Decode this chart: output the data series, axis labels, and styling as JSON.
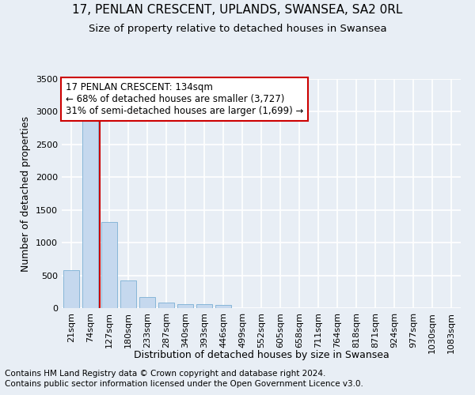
{
  "title": "17, PENLAN CRESCENT, UPLANDS, SWANSEA, SA2 0RL",
  "subtitle": "Size of property relative to detached houses in Swansea",
  "xlabel": "Distribution of detached houses by size in Swansea",
  "ylabel": "Number of detached properties",
  "footer_line1": "Contains HM Land Registry data © Crown copyright and database right 2024.",
  "footer_line2": "Contains public sector information licensed under the Open Government Licence v3.0.",
  "bin_labels": [
    "21sqm",
    "74sqm",
    "127sqm",
    "180sqm",
    "233sqm",
    "287sqm",
    "340sqm",
    "393sqm",
    "446sqm",
    "499sqm",
    "552sqm",
    "605sqm",
    "658sqm",
    "711sqm",
    "764sqm",
    "818sqm",
    "871sqm",
    "924sqm",
    "977sqm",
    "1030sqm",
    "1083sqm"
  ],
  "bar_values": [
    575,
    2900,
    1310,
    420,
    175,
    80,
    60,
    55,
    50,
    0,
    0,
    0,
    0,
    0,
    0,
    0,
    0,
    0,
    0,
    0,
    0
  ],
  "bar_color": "#c5d8ee",
  "bar_edge_color": "#7aafd4",
  "highlight_color": "#cc0000",
  "highlight_bin_index": 2,
  "annotation_line1": "17 PENLAN CRESCENT: 134sqm",
  "annotation_line2": "← 68% of detached houses are smaller (3,727)",
  "annotation_line3": "31% of semi-detached houses are larger (1,699) →",
  "annotation_box_color": "#ffffff",
  "annotation_box_edge_color": "#cc0000",
  "ylim": [
    0,
    3500
  ],
  "yticks": [
    0,
    500,
    1000,
    1500,
    2000,
    2500,
    3000,
    3500
  ],
  "background_color": "#e8eef5",
  "grid_color": "#ffffff",
  "title_fontsize": 11,
  "subtitle_fontsize": 9.5,
  "axis_label_fontsize": 9,
  "tick_fontsize": 8,
  "annotation_fontsize": 8.5,
  "footer_fontsize": 7.5
}
